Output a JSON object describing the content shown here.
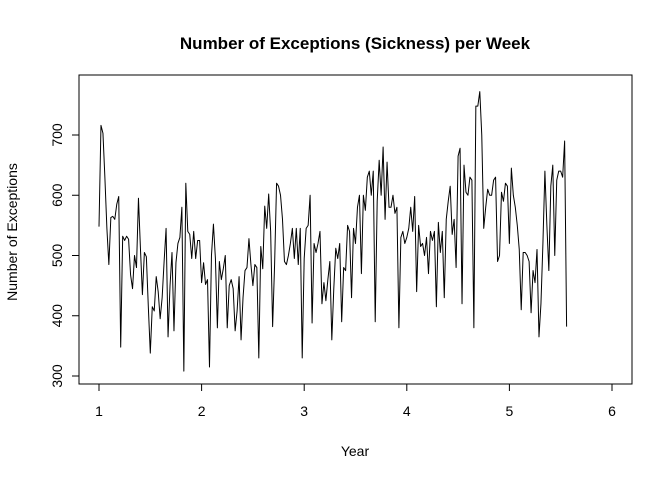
{
  "chart_data": {
    "type": "line",
    "title": "Number of Exceptions (Sickness) per Week",
    "xlabel": "Year",
    "ylabel": "Number of Exceptions",
    "xlim": [
      1,
      6
    ],
    "ylim": [
      300,
      775
    ],
    "xticks": [
      1,
      2,
      3,
      4,
      5,
      6
    ],
    "yticks": [
      300,
      400,
      500,
      600,
      700
    ],
    "grid": false,
    "legend": "none",
    "line_color": "#000000",
    "series": [
      {
        "x_start": 1,
        "x_step": 0.01923,
        "values": [
          548,
          716,
          703,
          628,
          545,
          485,
          563,
          565,
          560,
          585,
          598,
          348,
          532,
          525,
          532,
          527,
          468,
          445,
          500,
          480,
          595,
          512,
          435,
          505,
          498,
          415,
          338,
          415,
          408,
          465,
          440,
          395,
          430,
          490,
          545,
          365,
          450,
          505,
          375,
          488,
          520,
          530,
          580,
          308,
          620,
          540,
          535,
          495,
          540,
          495,
          525,
          525,
          455,
          488,
          452,
          460,
          315,
          500,
          552,
          495,
          380,
          490,
          460,
          478,
          500,
          380,
          450,
          460,
          445,
          375,
          408,
          465,
          360,
          430,
          475,
          480,
          528,
          485,
          450,
          485,
          480,
          330,
          515,
          478,
          582,
          545,
          602,
          540,
          382,
          485,
          620,
          615,
          600,
          560,
          490,
          485,
          500,
          520,
          545,
          495,
          545,
          485,
          545,
          330,
          495,
          545,
          550,
          600,
          388,
          520,
          505,
          520,
          540,
          420,
          455,
          425,
          460,
          490,
          360,
          445,
          512,
          495,
          520,
          390,
          480,
          475,
          550,
          540,
          430,
          545,
          520,
          580,
          600,
          470,
          600,
          575,
          630,
          640,
          600,
          640,
          390,
          590,
          658,
          600,
          680,
          560,
          655,
          580,
          580,
          600,
          570,
          580,
          380,
          530,
          540,
          520,
          530,
          545,
          580,
          540,
          598,
          440,
          550,
          515,
          520,
          500,
          530,
          470,
          540,
          525,
          540,
          415,
          555,
          505,
          540,
          430,
          560,
          590,
          615,
          535,
          560,
          480,
          665,
          678,
          420,
          650,
          605,
          600,
          630,
          625,
          380,
          748,
          748,
          772,
          700,
          545,
          580,
          610,
          600,
          600,
          625,
          630,
          490,
          500,
          605,
          590,
          620,
          615,
          520,
          645,
          600,
          580,
          550,
          510,
          410,
          505,
          505,
          500,
          490,
          405,
          475,
          455,
          510,
          365,
          420,
          520,
          640,
          550,
          475,
          615,
          650,
          500,
          625,
          640,
          640,
          630,
          690,
          382
        ]
      }
    ]
  }
}
